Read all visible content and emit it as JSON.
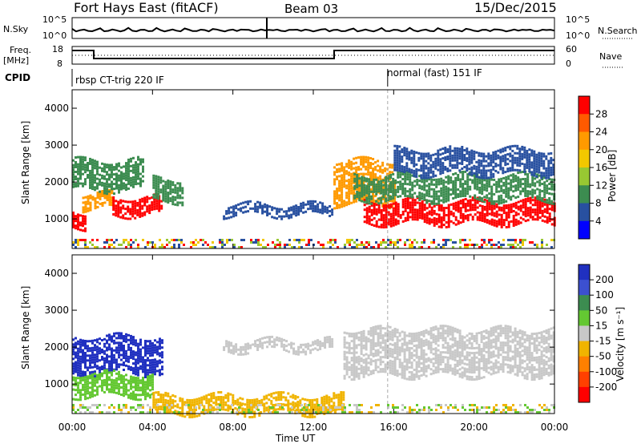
{
  "header": {
    "title": "Fort Hays East (fitACF)",
    "beam": "Beam 03",
    "date": "15/Dec/2015"
  },
  "noise_panel": {
    "left_label": "N.Sky",
    "right_label": "N.Search",
    "left_ticks": [
      "10^5",
      "10^0"
    ],
    "right_ticks": [
      "10^5",
      "10^0"
    ]
  },
  "freq_panel": {
    "left_label_1": "Freq.",
    "left_label_2": "[MHz]",
    "right_label": "Nave",
    "left_ticks": [
      "18",
      "8"
    ],
    "right_ticks": [
      "60",
      "0"
    ]
  },
  "cpid_panel": {
    "label": "CPID",
    "mode_1": "rbsp CT-trig 220 IF",
    "mode_2": "normal (fast) 151 IF"
  },
  "power_colorbar": {
    "label": "Power [dB]",
    "ticks": [
      "28",
      "24",
      "20",
      "16",
      "12",
      "8",
      "4"
    ],
    "colors": [
      "#ff0000",
      "#ff5a00",
      "#ff9a00",
      "#f2c800",
      "#98c832",
      "#3c8c50",
      "#2850a0",
      "#0000ff"
    ]
  },
  "velocity_colorbar": {
    "label": "Velocity [m s⁻¹]",
    "ticks": [
      "200",
      "100",
      "50",
      "15",
      "-15",
      "-50",
      "-100",
      "-200"
    ],
    "colors": [
      "#2030c0",
      "#3c50d0",
      "#3c8c50",
      "#64c832",
      "#c8c8c8",
      "#f0b400",
      "#ff8000",
      "#ff4000",
      "#ff0000"
    ]
  },
  "chart_data": {
    "type": "heatmap",
    "xlabel": "Time UT",
    "ylabel": "Slant Range [km]",
    "x_ticks": [
      "00:00",
      "04:00",
      "08:00",
      "12:00",
      "16:00",
      "20:00",
      "00:00"
    ],
    "y_ticks": [
      "1000",
      "2000",
      "3000",
      "4000"
    ],
    "xlim": [
      0,
      24
    ],
    "ylim": [
      200,
      4500
    ],
    "grid": false,
    "panels": [
      {
        "name": "Power",
        "regions": [
          {
            "t": [
              0.0,
              0.6
            ],
            "r": [
              800,
              1200
            ],
            "level": "red"
          },
          {
            "t": [
              0.5,
              2.0
            ],
            "r": [
              1300,
              1700
            ],
            "level": "orange"
          },
          {
            "t": [
              2.0,
              4.5
            ],
            "r": [
              1100,
              1600
            ],
            "level": "red"
          },
          {
            "t": [
              4.0,
              5.5
            ],
            "r": [
              1500,
              2100
            ],
            "level": "green"
          },
          {
            "t": [
              0.0,
              3.5
            ],
            "r": [
              1800,
              2600
            ],
            "level": "green"
          },
          {
            "t": [
              7.5,
              13.0
            ],
            "r": [
              1100,
              1400
            ],
            "level": "blue"
          },
          {
            "t": [
              13.0,
              16.0
            ],
            "r": [
              1400,
              2600
            ],
            "level": "orange"
          },
          {
            "t": [
              14.5,
              24.0
            ],
            "r": [
              900,
              1500
            ],
            "level": "red"
          },
          {
            "t": [
              14.0,
              24.0
            ],
            "r": [
              1500,
              2200
            ],
            "level": "green"
          },
          {
            "t": [
              16.0,
              24.0
            ],
            "r": [
              2200,
              2900
            ],
            "level": "blue"
          }
        ]
      },
      {
        "name": "Velocity",
        "regions": [
          {
            "t": [
              0.0,
              4.5
            ],
            "r": [
              1300,
              2300
            ],
            "level": "blue"
          },
          {
            "t": [
              0.0,
              4.0
            ],
            "r": [
              700,
              1300
            ],
            "level": "green"
          },
          {
            "t": [
              4.0,
              13.5
            ],
            "r": [
              200,
              700
            ],
            "level": "orange"
          },
          {
            "t": [
              7.5,
              13.0
            ],
            "r": [
              1900,
              2200
            ],
            "level": "gray"
          },
          {
            "t": [
              13.5,
              24.0
            ],
            "r": [
              1200,
              2500
            ],
            "level": "gray"
          }
        ]
      }
    ],
    "cpid_change_time": 15.7
  }
}
